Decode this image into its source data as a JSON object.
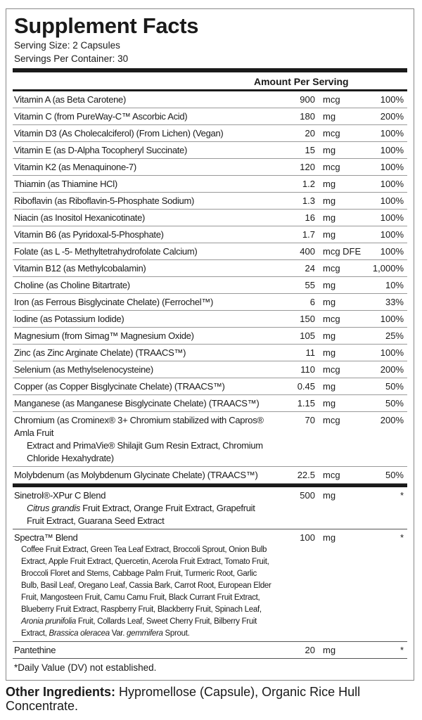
{
  "title": "Supplement Facts",
  "serving_size": "Serving Size: 2 Capsules",
  "servings_per_container": "Servings Per Container: 30",
  "amount_header": "Amount Per Serving",
  "nutrients": [
    {
      "name": "Vitamin A (as Beta Carotene)",
      "amount": "900",
      "unit": "mcg",
      "dv": "100%"
    },
    {
      "name": "Vitamin C (from PureWay-C™ Ascorbic Acid)",
      "amount": "180",
      "unit": "mg",
      "dv": "200%"
    },
    {
      "name": "Vitamin D3 (As Cholecalciferol) (From Lichen) (Vegan)",
      "amount": "20",
      "unit": "mcg",
      "dv": "100%"
    },
    {
      "name": "Vitamin E (as D-Alpha Tocopheryl Succinate)",
      "amount": "15",
      "unit": "mg",
      "dv": "100%"
    },
    {
      "name": "Vitamin K2 (as Menaquinone-7)",
      "amount": "120",
      "unit": "mcg",
      "dv": "100%"
    },
    {
      "name": "Thiamin (as Thiamine HCl)",
      "amount": "1.2",
      "unit": "mg",
      "dv": "100%"
    },
    {
      "name": "Riboflavin (as Riboflavin-5-Phosphate Sodium)",
      "amount": "1.3",
      "unit": "mg",
      "dv": "100%"
    },
    {
      "name": "Niacin (as Inositol Hexanicotinate)",
      "amount": "16",
      "unit": "mg",
      "dv": "100%"
    },
    {
      "name": "Vitamin B6 (as Pyridoxal-5-Phosphate)",
      "amount": "1.7",
      "unit": "mg",
      "dv": "100%"
    },
    {
      "name": "Folate (as L -5- Methyltetrahydrofolate Calcium)",
      "amount": "400",
      "unit": "mcg DFE",
      "dv": "100%"
    },
    {
      "name": "Vitamin B12 (as Methylcobalamin)",
      "amount": "24",
      "unit": "mcg",
      "dv": "1,000%"
    },
    {
      "name": "Choline (as Choline Bitartrate)",
      "amount": "55",
      "unit": "mg",
      "dv": "10%"
    },
    {
      "name": "Iron (as Ferrous Bisglycinate Chelate) (Ferrochel™)",
      "amount": "6",
      "unit": "mg",
      "dv": "33%"
    },
    {
      "name": "Iodine (as Potassium Iodide)",
      "amount": "150",
      "unit": "mcg",
      "dv": "100%"
    },
    {
      "name": "Magnesium (from Simag™ Magnesium Oxide)",
      "amount": "105",
      "unit": "mg",
      "dv": "25%"
    },
    {
      "name": "Zinc (as Zinc Arginate Chelate) (TRAACS™)",
      "amount": "11",
      "unit": "mg",
      "dv": "100%"
    },
    {
      "name": "Selenium (as Methylselenocysteine)",
      "amount": "110",
      "unit": "mcg",
      "dv": "200%"
    },
    {
      "name": "Copper (as Copper Bisglycinate Chelate) (TRAACS™)",
      "amount": "0.45",
      "unit": "mg",
      "dv": "50%"
    },
    {
      "name": "Manganese (as Manganese Bisglycinate Chelate) (TRAACS™)",
      "amount": "1.15",
      "unit": "mg",
      "dv": "50%"
    },
    {
      "name": "Chromium (as Crominex® 3+ Chromium stabilized with Capros® Amla Fruit",
      "detail": "Extract and PrimaVie® Shilajit Gum Resin Extract, Chromium Chloride Hexahydrate)",
      "amount": "70",
      "unit": "mcg",
      "dv": "200%"
    },
    {
      "name": "Molybdenum (as Molybdenum Glycinate Chelate) (TRAACS™)",
      "amount": "22.5",
      "unit": "mcg",
      "dv": "50%"
    }
  ],
  "blends": [
    {
      "name": "Sinetrol®-XPur C Blend",
      "italic": "Citrus grandis",
      "detail": " Fruit Extract, Orange Fruit Extract, Grapefruit Fruit Extract, Guarana Seed Extract",
      "amount": "500",
      "unit": "mg",
      "dv": "*"
    },
    {
      "name": "Spectra™ Blend",
      "detail_a": "Coffee Fruit Extract, Green Tea Leaf Extract, Broccoli Sprout, Onion Bulb Extract, Apple Fruit Extract, Quercetin, Acerola Fruit Extract, Tomato Fruit, Broccoli Floret and Stems, Cabbage Palm Fruit, Turmeric Root, Garlic Bulb, Basil Leaf, Oregano Leaf, Cassia Bark, Carrot Root, European Elder Fruit, Mangosteen Fruit, Camu Camu Fruit, Black Currant Fruit Extract, Blueberry Fruit Extract, Raspberry Fruit, Blackberry Fruit, Spinach Leaf, ",
      "italic_a": "Aronia prunifolia",
      "detail_b": " Fruit, Collards Leaf, Sweet Cherry Fruit, Bilberry Fruit Extract, ",
      "italic_b": "Brassica oleracea",
      "detail_c": " Var. ",
      "italic_c": "gemmifera",
      "detail_d": " Sprout.",
      "amount": "100",
      "unit": "mg",
      "dv": "*"
    },
    {
      "name": "Pantethine",
      "amount": "20",
      "unit": "mg",
      "dv": "*"
    }
  ],
  "footnote": "*Daily Value (DV) not established.",
  "other_label": "Other Ingredients:",
  "other_text": " Hypromellose (Capsule), Organic Rice Hull Concentrate."
}
